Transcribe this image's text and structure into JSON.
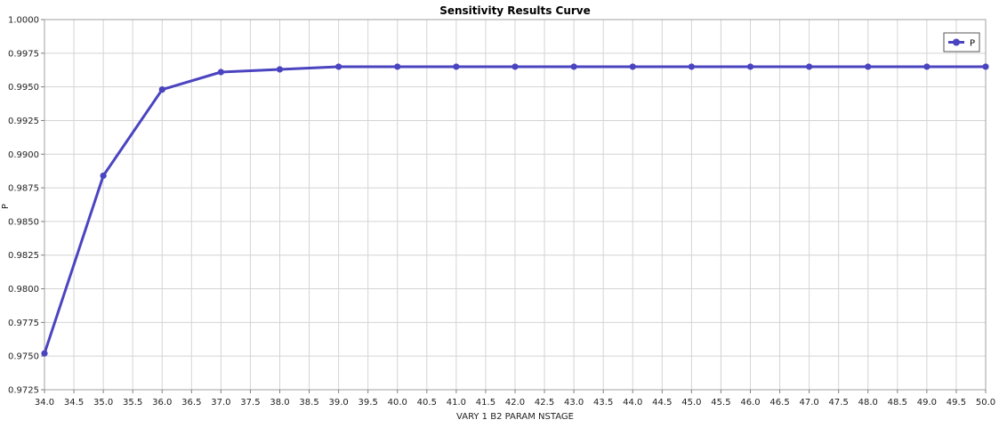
{
  "chart_data": {
    "type": "line",
    "title": "Sensitivity Results Curve",
    "xlabel": "VARY   1 B2 PARAM NSTAGE",
    "ylabel": "P",
    "xlim": [
      34.0,
      50.0
    ],
    "ylim": [
      0.9725,
      1.0
    ],
    "x_ticks": [
      "34.0",
      "34.5",
      "35.0",
      "35.5",
      "36.0",
      "36.5",
      "37.0",
      "37.5",
      "38.0",
      "38.5",
      "39.0",
      "39.5",
      "40.0",
      "40.5",
      "41.0",
      "41.5",
      "42.0",
      "42.5",
      "43.0",
      "43.5",
      "44.0",
      "44.5",
      "45.0",
      "45.5",
      "46.0",
      "46.5",
      "47.0",
      "47.5",
      "48.0",
      "48.5",
      "49.0",
      "49.5",
      "50.0"
    ],
    "y_ticks": [
      "0.9725",
      "0.9750",
      "0.9775",
      "0.9800",
      "0.9825",
      "0.9850",
      "0.9875",
      "0.9900",
      "0.9925",
      "0.9950",
      "0.9975",
      "1.0000"
    ],
    "grid": true,
    "legend_position": "top-right",
    "series": [
      {
        "name": "P",
        "color": "#4b44c0",
        "marker": "circle",
        "x": [
          34,
          35,
          36,
          37,
          38,
          39,
          40,
          41,
          42,
          43,
          44,
          45,
          46,
          47,
          48,
          49,
          50
        ],
        "y": [
          0.9752,
          0.9884,
          0.9948,
          0.9961,
          0.9963,
          0.9965,
          0.9965,
          0.9965,
          0.9965,
          0.9965,
          0.9965,
          0.9965,
          0.9965,
          0.9965,
          0.9965,
          0.9965,
          0.9965
        ]
      }
    ]
  }
}
